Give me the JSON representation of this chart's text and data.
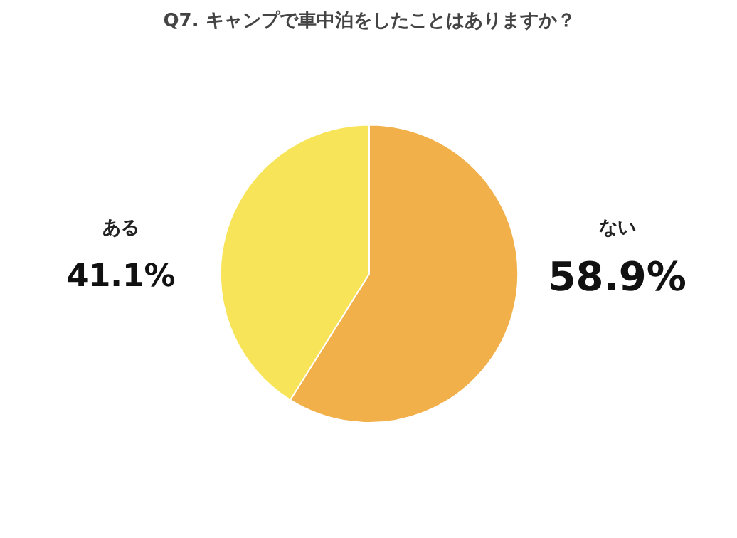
{
  "chart_data": {
    "type": "pie",
    "title": "Q7. キャンプで車中泊をしたことはありますか？",
    "categories": [
      "ない",
      "ある"
    ],
    "values": [
      58.9,
      41.1
    ],
    "colors": [
      "#f2b04a",
      "#f8e458"
    ],
    "data_labels": true,
    "value_labels": [
      "58.9%",
      "41.1%"
    ]
  }
}
